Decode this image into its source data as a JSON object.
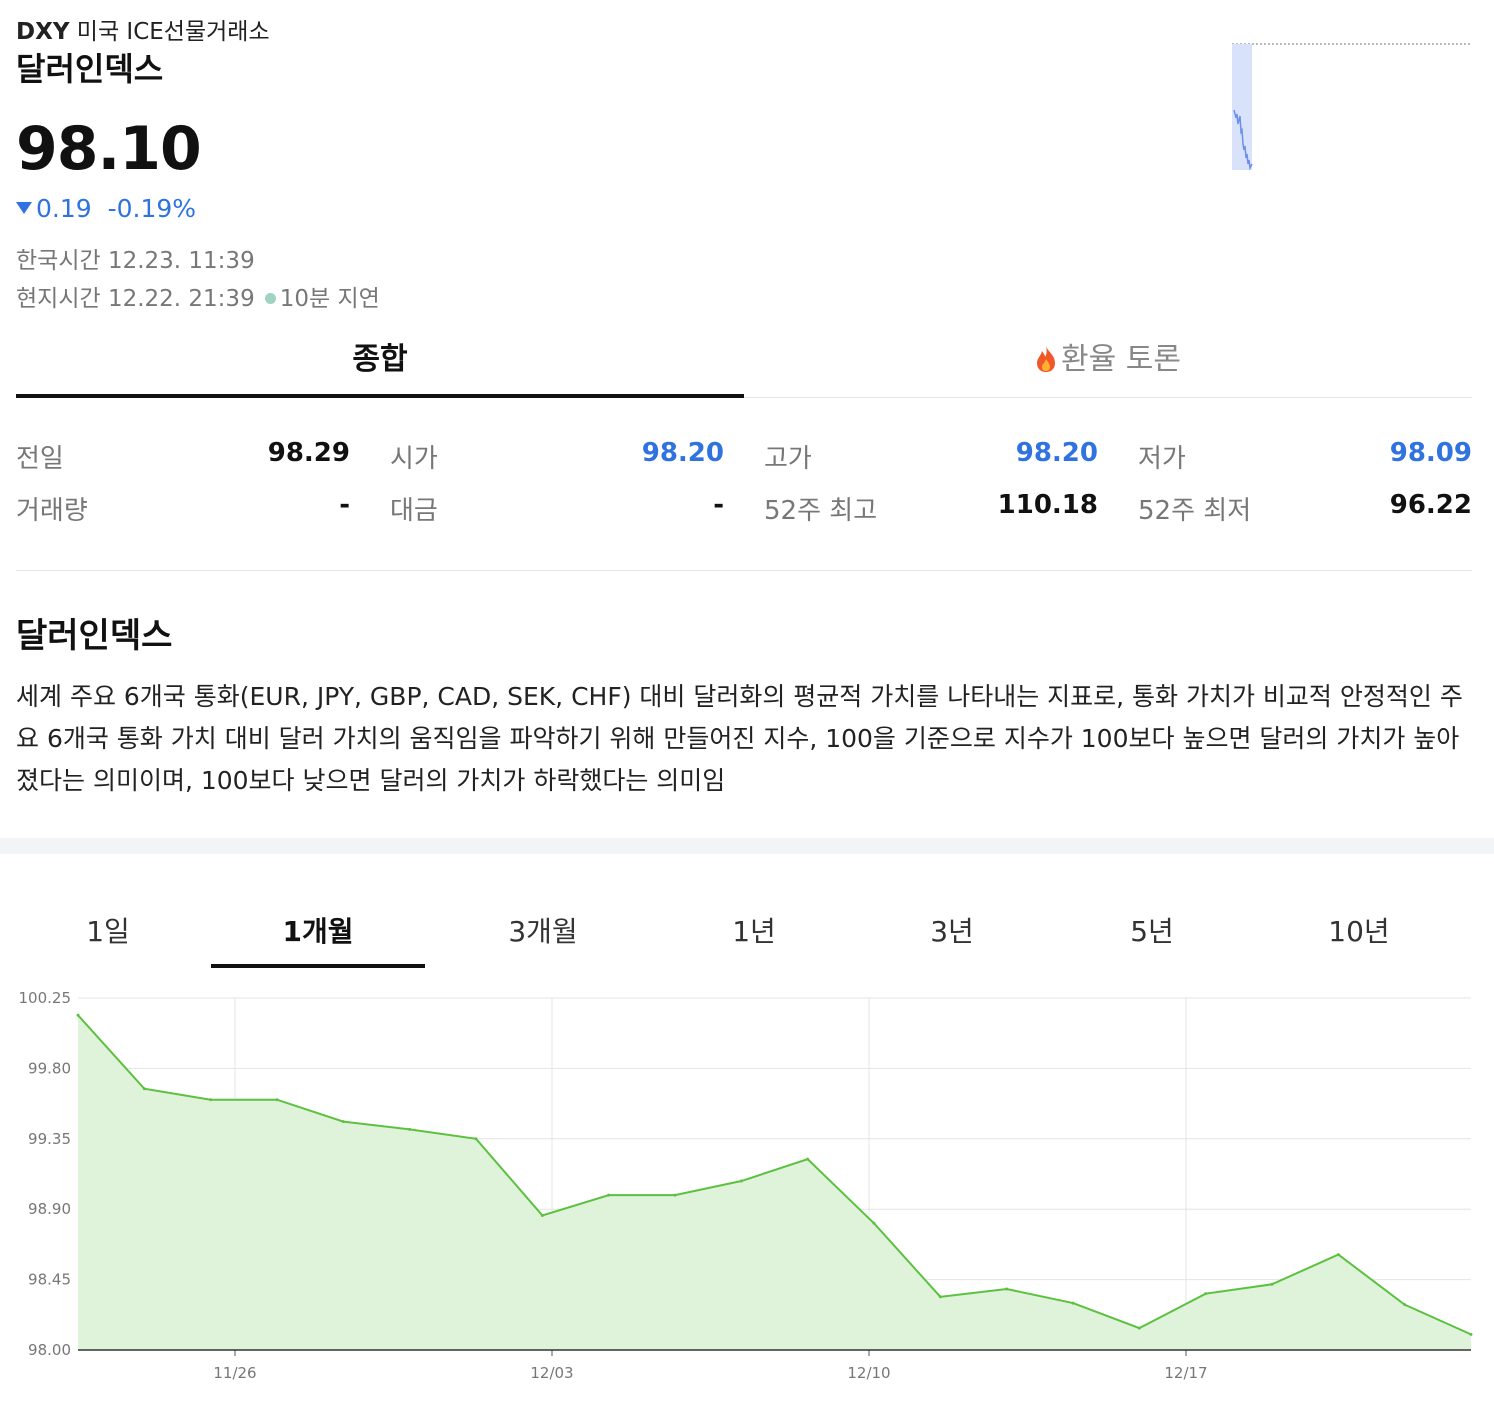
{
  "header": {
    "symbol": "DXY",
    "exchange": "미국 ICE선물거래소",
    "name": "달러인덱스",
    "price": "98.10",
    "change": "0.19",
    "change_pct": "-0.19%",
    "kst_label": "한국시간",
    "kst_time": "12.23. 11:39",
    "local_label": "현지시간",
    "local_time": "12.22. 21:39",
    "delay": "10분 지연",
    "direction": "down",
    "down_color": "#2f72e0"
  },
  "tabs": {
    "overview": "종합",
    "discussion": "환율 토론"
  },
  "stats": {
    "prev_label": "전일",
    "prev_value": "98.29",
    "open_label": "시가",
    "open_value": "98.20",
    "high_label": "고가",
    "high_value": "98.20",
    "low_label": "저가",
    "low_value": "98.09",
    "volume_label": "거래량",
    "volume_value": "-",
    "amount_label": "대금",
    "amount_value": "-",
    "w52_high_label": "52주 최고",
    "w52_high_value": "110.18",
    "w52_low_label": "52주 최저",
    "w52_low_value": "96.22"
  },
  "description": {
    "title": "달러인덱스",
    "text": "세계 주요 6개국 통화(EUR, JPY, GBP, CAD, SEK, CHF) 대비 달러화의 평균적 가치를 나타내는 지표로, 통화 가치가 비교적 안정적인 주요 6개국 통화 가치 대비 달러 가치의 움직임을 파악하기 위해 만들어진 지수, 100을 기준으로 지수가 100보다 높으면 달러의 가치가 높아졌다는 의미이며, 100보다 낮으면 달러의 가치가 하락했다는 의미임"
  },
  "period_tabs": [
    "1일",
    "1개월",
    "3개월",
    "1년",
    "3년",
    "5년",
    "10년"
  ],
  "period_active": "1개월",
  "chart_data": {
    "type": "area",
    "ylim": [
      98.0,
      100.25
    ],
    "y_ticks": [
      "100.25",
      "99.80",
      "99.35",
      "98.90",
      "98.45",
      "98.00"
    ],
    "x_ticks": [
      "11/26",
      "12/03",
      "12/10",
      "12/17"
    ],
    "series": [
      {
        "values": [
          100.14,
          99.67,
          99.6,
          99.6,
          99.46,
          99.41,
          99.35,
          98.86,
          98.99,
          98.99,
          99.08,
          99.22,
          98.81,
          98.34,
          98.39,
          98.3,
          98.14,
          98.36,
          98.42,
          98.61,
          98.29,
          98.1
        ]
      }
    ],
    "line_color": "#5cc140",
    "fill_color": "#dff3da",
    "grid": true
  }
}
